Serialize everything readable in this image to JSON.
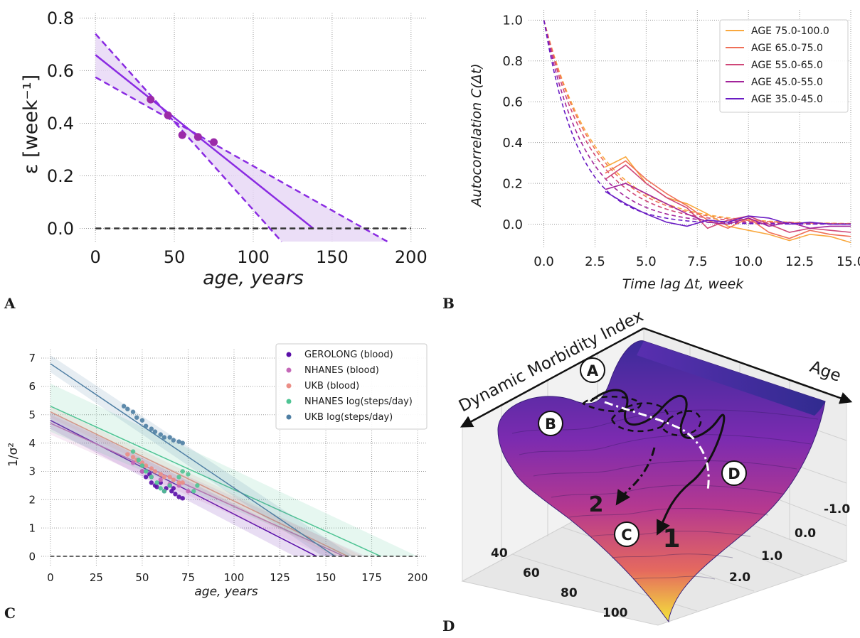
{
  "panel_labels": [
    "A",
    "B",
    "C",
    "D"
  ],
  "chart_data": [
    {
      "panel": "A",
      "type": "line",
      "xlabel": "age, years",
      "ylabel": "ε [week⁻¹]",
      "xlim": [
        -10,
        210
      ],
      "ylim": [
        -0.05,
        0.82
      ],
      "x_ticks": [
        0,
        50,
        100,
        150,
        200
      ],
      "y_ticks": [
        0.0,
        0.2,
        0.4,
        0.6,
        0.8
      ],
      "x_tick_labels": [
        "0",
        "50",
        "100",
        "150",
        "200"
      ],
      "y_tick_labels": [
        "0.0",
        "0.2",
        "0.4",
        "0.6",
        "0.8"
      ],
      "grid": true,
      "points": [
        {
          "x": 35,
          "y": 0.49
        },
        {
          "x": 46,
          "y": 0.43
        },
        {
          "x": 55,
          "y": 0.355
        },
        {
          "x": 65,
          "y": 0.348
        },
        {
          "x": 75,
          "y": 0.328
        }
      ],
      "fit_line": {
        "x": [
          0,
          138
        ],
        "y": [
          0.66,
          0.0
        ]
      },
      "band_upper": {
        "x": [
          0,
          185
        ],
        "y": [
          0.575,
          -0.05
        ]
      },
      "band_lower": {
        "x": [
          0,
          118
        ],
        "y": [
          0.74,
          -0.05
        ]
      },
      "zero_line": 0.0,
      "colors": {
        "main": "#8a2be2",
        "points": "#9b2aa8",
        "band": "#e6d6f5",
        "zero": "#333333"
      }
    },
    {
      "panel": "B",
      "type": "line",
      "xlabel": "Time lag Δt, week",
      "ylabel": "Autocorrelation C(Δt)",
      "xlim": [
        -0.75,
        15.0
      ],
      "ylim": [
        -0.12,
        1.05
      ],
      "x_ticks": [
        0.0,
        2.5,
        5.0,
        7.5,
        10.0,
        12.5,
        15.0
      ],
      "y_ticks": [
        0.0,
        0.2,
        0.4,
        0.6,
        0.8,
        1.0
      ],
      "x_tick_labels": [
        "0.0",
        "2.5",
        "5.0",
        "7.5",
        "10.0",
        "12.5",
        "15.0"
      ],
      "y_tick_labels": [
        "0.0",
        "0.2",
        "0.4",
        "0.6",
        "0.8",
        "1.0"
      ],
      "grid": true,
      "legend_position": "top-right",
      "series": [
        {
          "name": "AGE 75.0-100.0",
          "color": "#f9a83e",
          "x": [
            3,
            4,
            5,
            6,
            7,
            8,
            9,
            10,
            11,
            12,
            13,
            14,
            15
          ],
          "y": [
            0.28,
            0.33,
            0.2,
            0.13,
            0.1,
            0.05,
            -0.01,
            -0.03,
            -0.05,
            -0.08,
            -0.05,
            -0.06,
            -0.09
          ],
          "tau": 2.6
        },
        {
          "name": "AGE 65.0-75.0",
          "color": "#ef6f57",
          "x": [
            3,
            4,
            5,
            6,
            7,
            8,
            9,
            10,
            11,
            12,
            13,
            14,
            15
          ],
          "y": [
            0.25,
            0.31,
            0.22,
            0.15,
            0.09,
            0.02,
            -0.02,
            0.03,
            -0.04,
            -0.07,
            -0.03,
            -0.05,
            -0.06
          ],
          "tau": 2.5
        },
        {
          "name": "AGE 55.0-65.0",
          "color": "#cf4778",
          "x": [
            3,
            4,
            5,
            6,
            7,
            8,
            9,
            10,
            11,
            12,
            13,
            14,
            15
          ],
          "y": [
            0.22,
            0.29,
            0.2,
            0.13,
            0.08,
            -0.02,
            0.02,
            0.04,
            0.0,
            -0.04,
            -0.02,
            -0.03,
            -0.04
          ],
          "tau": 2.3
        },
        {
          "name": "AGE 45.0-55.0",
          "color": "#a2239a",
          "x": [
            3,
            4,
            5,
            6,
            7,
            8,
            9,
            10,
            11,
            12,
            13,
            14,
            15
          ],
          "y": [
            0.17,
            0.2,
            0.15,
            0.1,
            0.05,
            0.01,
            0.0,
            0.03,
            -0.01,
            0.01,
            -0.02,
            -0.01,
            -0.01
          ],
          "tau": 2.0
        },
        {
          "name": "AGE 35.0-45.0",
          "color": "#6a1cc4",
          "x": [
            3,
            4,
            5,
            6,
            7,
            8,
            9,
            10,
            11,
            12,
            13,
            14,
            15
          ],
          "y": [
            0.16,
            0.1,
            0.05,
            0.01,
            -0.01,
            0.02,
            0.01,
            0.04,
            0.03,
            0.0,
            0.01,
            0.0,
            0.0
          ],
          "tau": 1.7
        }
      ]
    },
    {
      "panel": "C",
      "type": "scatter",
      "xlabel": "age, years",
      "ylabel": "1/σ²",
      "xlim": [
        -5,
        205
      ],
      "ylim": [
        -0.35,
        7.3
      ],
      "x_ticks": [
        0,
        25,
        50,
        75,
        100,
        125,
        150,
        175,
        200
      ],
      "y_ticks": [
        0,
        1,
        2,
        3,
        4,
        5,
        6,
        7
      ],
      "x_tick_labels": [
        "0",
        "25",
        "50",
        "75",
        "100",
        "125",
        "150",
        "175",
        "200"
      ],
      "y_tick_labels": [
        "0",
        "1",
        "2",
        "3",
        "4",
        "5",
        "6",
        "7"
      ],
      "grid": true,
      "legend_position": "top-right",
      "series": [
        {
          "name": "GEROLONG (blood)",
          "color": "#5a0ea8",
          "fit": {
            "intercept": 4.8,
            "root": 145
          },
          "band": {
            "lo": [
              4.5,
              133
            ],
            "hi": [
              5.1,
              157
            ]
          },
          "points_x": [
            50,
            52,
            54,
            55,
            57,
            58,
            60,
            62,
            63,
            65,
            66,
            67,
            68,
            70,
            72
          ],
          "points_y": [
            3.0,
            2.8,
            2.9,
            2.6,
            2.5,
            2.45,
            2.6,
            2.3,
            2.4,
            2.5,
            2.3,
            2.4,
            2.2,
            2.1,
            2.05
          ]
        },
        {
          "name": "NHANES (blood)",
          "color": "#c468b8",
          "fit": {
            "intercept": 4.7,
            "root": 160
          },
          "band": {
            "lo": [
              4.3,
              150
            ],
            "hi": [
              5.0,
              172
            ]
          },
          "points_x": [
            45,
            50,
            55,
            60,
            65,
            70,
            75
          ],
          "points_y": [
            3.3,
            3.0,
            2.8,
            2.7,
            2.55,
            2.5,
            2.3
          ]
        },
        {
          "name": "UKB (blood)",
          "color": "#eb8e86",
          "fit": {
            "intercept": 5.1,
            "root": 162
          },
          "band": {
            "lo": [
              4.9,
              155
            ],
            "hi": [
              5.3,
              170
            ]
          },
          "points_x": [
            42,
            45,
            47,
            50,
            52,
            55,
            57,
            60,
            62,
            65,
            67,
            70,
            72
          ],
          "points_y": [
            3.6,
            3.5,
            3.4,
            3.3,
            3.2,
            3.1,
            3.0,
            2.9,
            2.8,
            2.8,
            2.7,
            2.6,
            2.6
          ]
        },
        {
          "name": "NHANES log(steps/day)",
          "color": "#4fc494",
          "fit": {
            "intercept": 5.3,
            "root": 180
          },
          "band": {
            "lo": [
              4.4,
              160
            ],
            "hi": [
              6.1,
              200
            ]
          },
          "points_x": [
            45,
            48,
            50,
            52,
            55,
            58,
            60,
            62,
            65,
            70,
            72,
            75,
            78,
            80
          ],
          "points_y": [
            3.7,
            3.4,
            3.2,
            3.0,
            2.8,
            2.6,
            2.4,
            2.3,
            2.5,
            2.8,
            3.0,
            2.9,
            2.3,
            2.5
          ]
        },
        {
          "name": "UKB log(steps/day)",
          "color": "#4e7ea3",
          "fit": {
            "intercept": 6.8,
            "root": 155
          },
          "band": {
            "lo": [
              6.5,
              148
            ],
            "hi": [
              7.1,
              165
            ]
          },
          "points_x": [
            40,
            42,
            45,
            47,
            50,
            52,
            55,
            57,
            60,
            62,
            65,
            67,
            70,
            72
          ],
          "points_y": [
            5.3,
            5.2,
            5.1,
            4.9,
            4.8,
            4.6,
            4.5,
            4.4,
            4.3,
            4.2,
            4.2,
            4.1,
            4.05,
            4.0
          ]
        }
      ],
      "zero_line": 0
    },
    {
      "panel": "D",
      "type": "surface",
      "x_axis_title": "Dynamic Morbidity Index",
      "y_axis_title": "Age",
      "age_tick_labels": [
        "40",
        "60",
        "80",
        "100"
      ],
      "index_tick_labels": [
        "-1.0",
        "0.0",
        "1.0",
        "2.0"
      ],
      "markers": [
        "A",
        "B",
        "C",
        "D"
      ],
      "trajectory_labels": [
        "1",
        "2"
      ]
    }
  ]
}
